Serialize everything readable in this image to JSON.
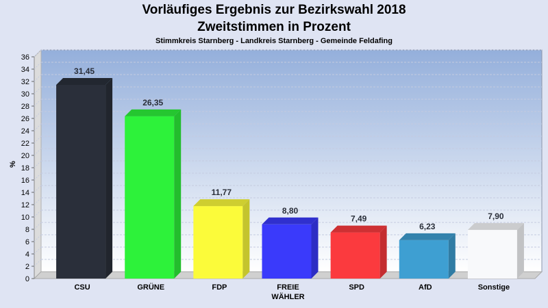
{
  "chart_data": {
    "type": "bar",
    "title": "Vorläufiges Ergebnis zur Bezirkswahl 2018",
    "subtitle": "Zweitstimmen in Prozent",
    "caption": "Stimmkreis Starnberg - Landkreis Starnberg - Gemeinde Feldafing",
    "xlabel": "",
    "ylabel": "%",
    "ylim": [
      0,
      36
    ],
    "ytick_step": 2,
    "grid": true,
    "categories": [
      "CSU",
      "GRÜNE",
      "FDP",
      "FREIE WÄHLER",
      "SPD",
      "AfD",
      "Sonstige"
    ],
    "category_lines": [
      [
        "CSU"
      ],
      [
        "GRÜNE"
      ],
      [
        "FDP"
      ],
      [
        "FREIE",
        "WÄHLER"
      ],
      [
        "SPD"
      ],
      [
        "AfD"
      ],
      [
        "Sonstige"
      ]
    ],
    "values": [
      31.45,
      26.35,
      11.77,
      8.8,
      7.49,
      6.23,
      7.9
    ],
    "value_labels": [
      "31,45",
      "26,35",
      "11,77",
      "8,80",
      "7,49",
      "6,23",
      "7,90"
    ],
    "colors": [
      "#2a2f3a",
      "#2df23a",
      "#fbfb3a",
      "#3a3afb",
      "#fb3a3e",
      "#3e9fd2",
      "#f8f9fb"
    ]
  }
}
